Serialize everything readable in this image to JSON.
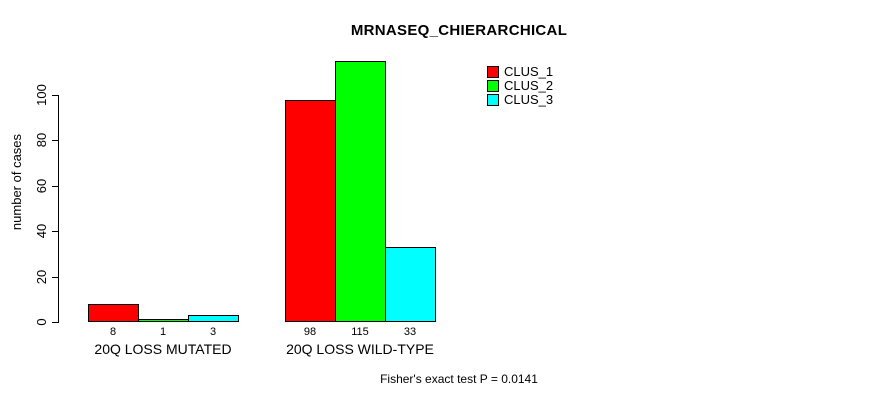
{
  "chart_data": {
    "type": "bar",
    "title": "MRNASEQ_CHIERARCHICAL",
    "categories": [
      "20Q LOSS MUTATED",
      "20Q LOSS WILD-TYPE"
    ],
    "series": [
      {
        "name": "CLUS_1",
        "color": "#FF0000",
        "values": [
          8,
          98
        ]
      },
      {
        "name": "CLUS_2",
        "color": "#00FF00",
        "values": [
          1,
          115
        ]
      },
      {
        "name": "CLUS_3",
        "color": "#00FFFF",
        "values": [
          3,
          33
        ]
      }
    ],
    "xlabel": "",
    "ylabel": "number of cases",
    "ylim": [
      0,
      120
    ],
    "yticks": [
      0,
      20,
      40,
      60,
      80,
      100
    ],
    "bar_value_labels": [
      [
        8,
        1,
        3
      ],
      [
        98,
        115,
        33
      ]
    ],
    "grid": false,
    "legend_position": "top-right",
    "annotation": "Fisher's exact test P = 0.0141"
  }
}
